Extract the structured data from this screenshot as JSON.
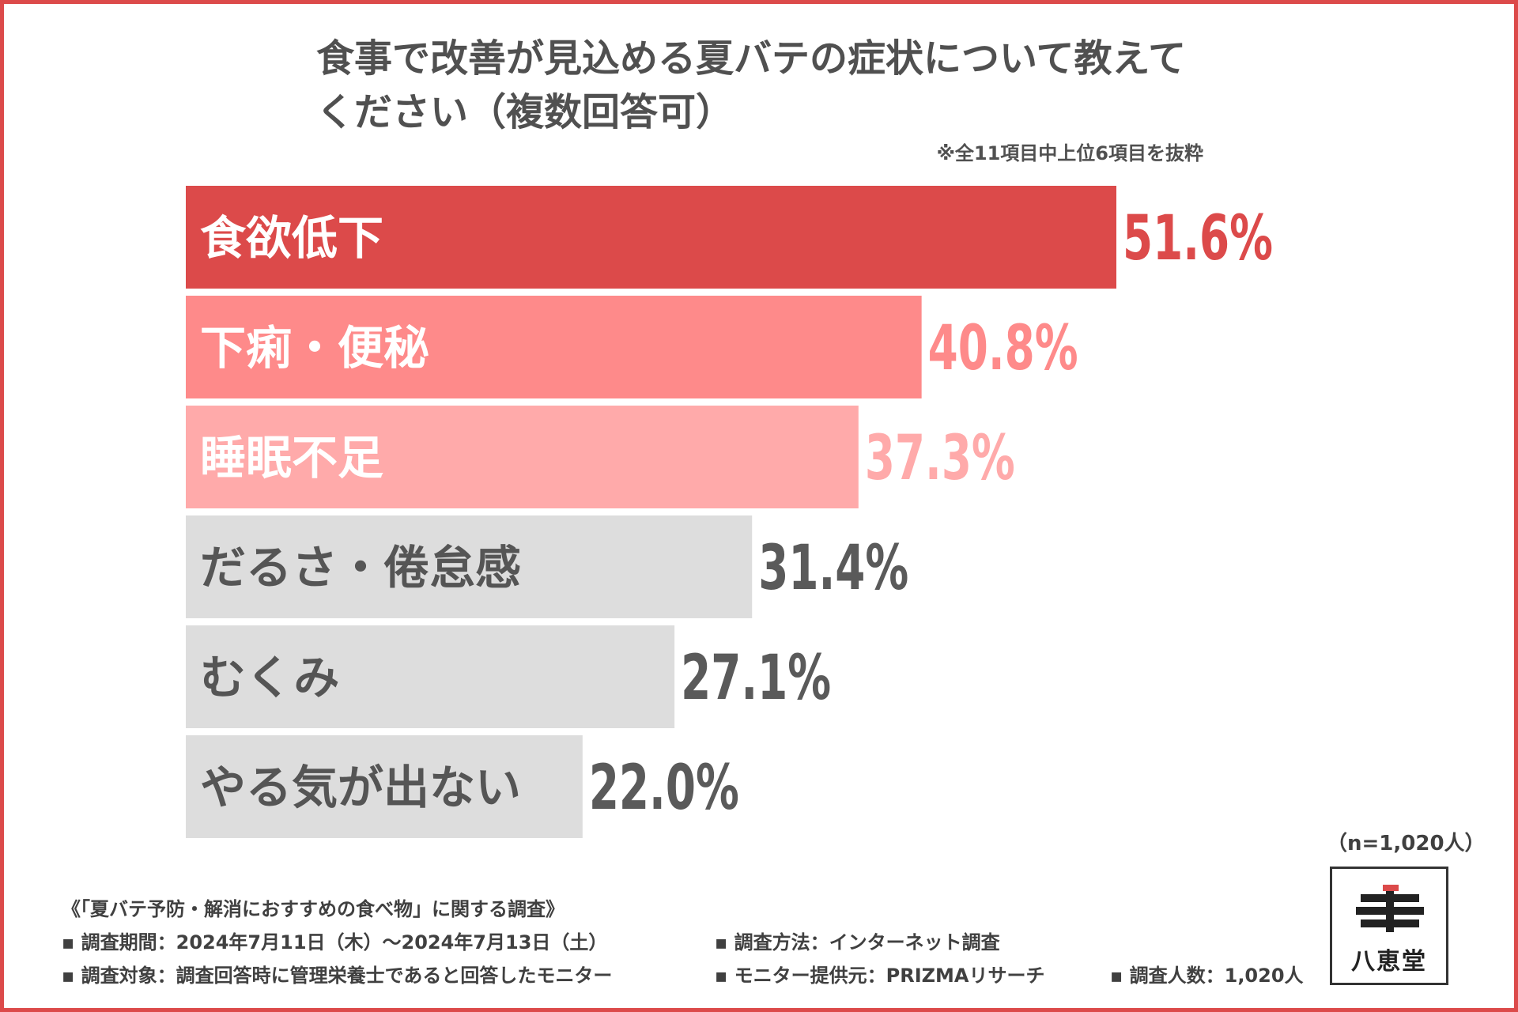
{
  "title": "食事で改善が見込める夏バテの症状について教えてください（複数回答可）",
  "note": "※全11項目中上位6項目を抜粋",
  "chart_data": {
    "type": "bar",
    "orientation": "horizontal",
    "categories": [
      "食欲低下",
      "下痢・便秘",
      "睡眠不足",
      "だるさ・倦怠感",
      "むくみ",
      "やる気が出ない"
    ],
    "values": [
      51.6,
      40.8,
      37.3,
      31.4,
      27.1,
      22.0
    ],
    "value_labels": [
      "51.6%",
      "40.8%",
      "37.3%",
      "31.4%",
      "27.1%",
      "22.0%"
    ],
    "unit": "%",
    "xlim": [
      0,
      60
    ],
    "bar_colors": [
      "#dc4a4a",
      "#fe8a8a",
      "#ffaaaa",
      "#dddddd",
      "#dddddd",
      "#dddddd"
    ],
    "value_colors": [
      "#dc4a4a",
      "#fe8a8a",
      "#ffaaaa",
      "#5a5a5a",
      "#5a5a5a",
      "#5a5a5a"
    ],
    "label_colors": [
      "#ffffff",
      "#ffffff",
      "#ffffff",
      "#555555",
      "#555555",
      "#555555"
    ],
    "grid": false,
    "legend": "none"
  },
  "sample_size": "（n=1,020人）",
  "survey": {
    "name": "《「夏バテ予防・解消におすすめの食べ物」に関する調査》",
    "period": "▪ 調査期間：2024年7月11日（木）～2024年7月13日（土）",
    "method": "▪ 調査方法：インターネット調査",
    "target": "▪ 調査対象：調査回答時に管理栄養士であると回答したモニター",
    "provider": "▪ モニター提供元：PRIZMAリサーチ",
    "respondents": "▪ 調査人数：1,020人"
  },
  "logo": {
    "text": "八恵堂",
    "accent_color": "#dc4a4a",
    "icon": "hachikeido-logo-icon"
  }
}
